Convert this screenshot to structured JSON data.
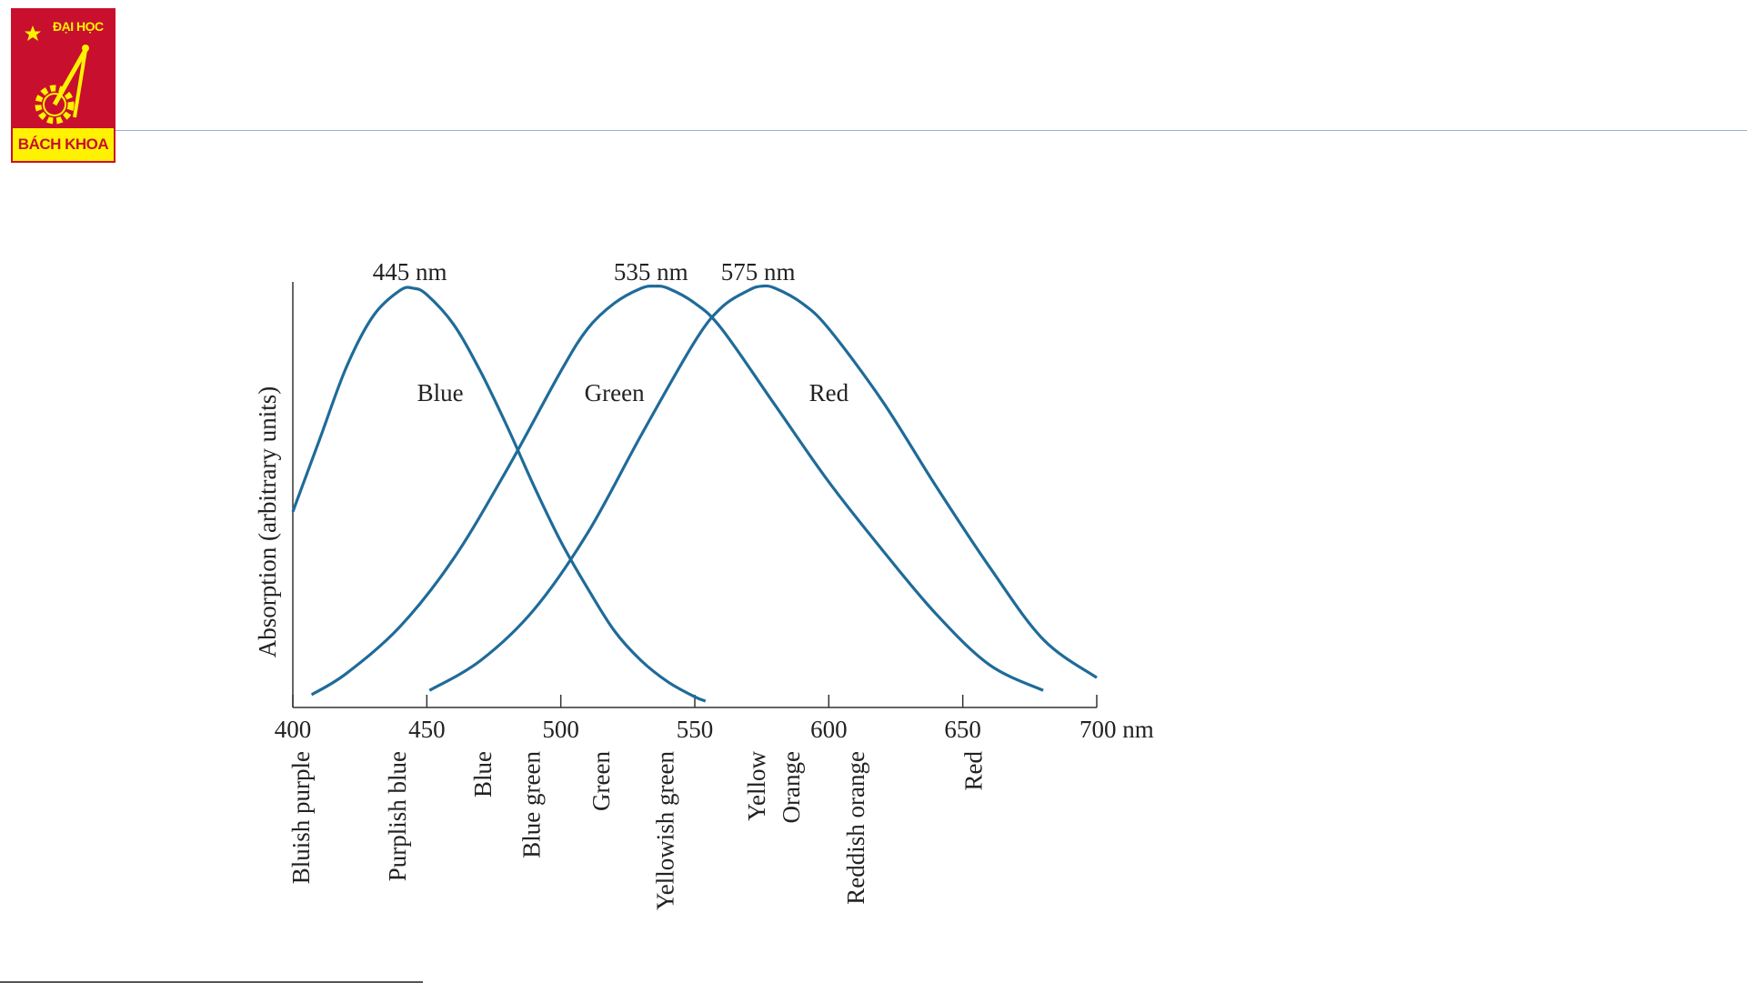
{
  "logo": {
    "top_text": "ĐẠI HỌC",
    "bottom_text": "BÁCH KHOA",
    "colors": {
      "red": "#c8102e",
      "yellow": "#fff200"
    }
  },
  "chart_data": {
    "type": "line",
    "xlabel": "",
    "ylabel": "Absorption (arbitrary units)",
    "x_unit": "nm",
    "xlim": [
      400,
      700
    ],
    "x_ticks": [
      400,
      450,
      500,
      550,
      600,
      650,
      700
    ],
    "x_tick_labels": [
      "400",
      "450",
      "500",
      "550",
      "600",
      "650",
      "700 nm"
    ],
    "ylim": [
      0,
      1
    ],
    "grid": false,
    "line_color": "#1f6b99",
    "series": [
      {
        "name": "Blue",
        "peak_label": "445 nm",
        "x": [
          400,
          410,
          420,
          430,
          440,
          445,
          450,
          460,
          470,
          480,
          490,
          500,
          510,
          520,
          530,
          540,
          550,
          554
        ],
        "y": [
          0.46,
          0.63,
          0.8,
          0.92,
          0.98,
          0.985,
          0.97,
          0.9,
          0.79,
          0.66,
          0.52,
          0.39,
          0.28,
          0.18,
          0.11,
          0.06,
          0.025,
          0.015
        ]
      },
      {
        "name": "Green",
        "peak_label": "535 nm",
        "x": [
          407,
          420,
          440,
          460,
          480,
          500,
          510,
          520,
          530,
          535,
          540,
          550,
          560,
          580,
          600,
          620,
          640,
          660,
          680
        ],
        "y": [
          0.03,
          0.08,
          0.19,
          0.35,
          0.56,
          0.79,
          0.89,
          0.95,
          0.985,
          0.99,
          0.985,
          0.95,
          0.89,
          0.71,
          0.53,
          0.37,
          0.22,
          0.1,
          0.04
        ]
      },
      {
        "name": "Red",
        "peak_label": "575 nm",
        "x": [
          451,
          470,
          490,
          510,
          530,
          550,
          560,
          570,
          575,
          580,
          590,
          600,
          620,
          640,
          660,
          680,
          700
        ],
        "y": [
          0.04,
          0.11,
          0.23,
          0.41,
          0.64,
          0.86,
          0.94,
          0.98,
          0.99,
          0.985,
          0.95,
          0.89,
          0.72,
          0.52,
          0.33,
          0.16,
          0.07
        ]
      }
    ],
    "color_names": [
      {
        "label": "Bluish purple",
        "x": 403
      },
      {
        "label": "Purplish blue",
        "x": 439
      },
      {
        "label": "Blue",
        "x": 471
      },
      {
        "label": "Blue green",
        "x": 489
      },
      {
        "label": "Green",
        "x": 515
      },
      {
        "label": "Yellowish green",
        "x": 539
      },
      {
        "label": "Yellow",
        "x": 573
      },
      {
        "label": "Orange",
        "x": 586
      },
      {
        "label": "Reddish orange",
        "x": 610
      },
      {
        "label": "Red",
        "x": 654
      }
    ]
  }
}
